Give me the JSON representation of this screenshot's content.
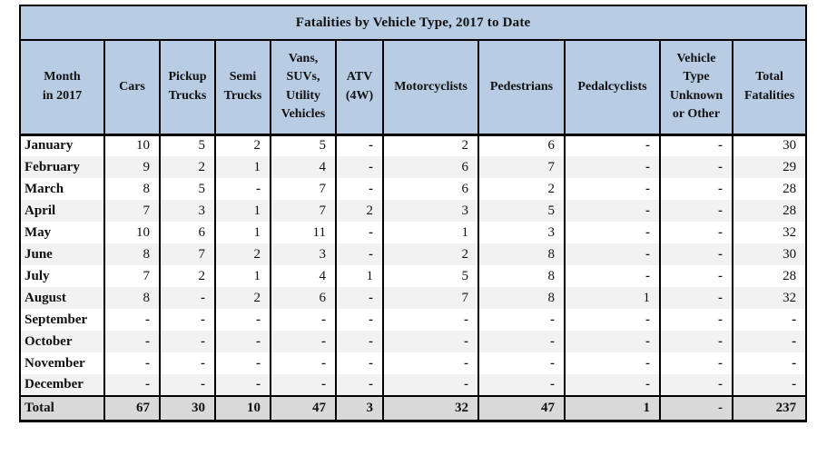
{
  "table": {
    "title": "Fatalities by Vehicle Type, 2017 to Date",
    "columns": [
      "Month\nin 2017",
      "Cars",
      "Pickup\nTrucks",
      "Semi\nTrucks",
      "Vans,\nSUVs,\nUtility\nVehicles",
      "ATV\n(4W)",
      "Motorcyclists",
      "Pedestrians",
      "Pedalcyclists",
      "Vehicle\nType\nUnknown\nor Other",
      "Total\nFatalities"
    ],
    "rows": [
      {
        "month": "January",
        "values": [
          "10",
          "5",
          "2",
          "5",
          "-",
          "2",
          "6",
          "-",
          "-",
          "30"
        ]
      },
      {
        "month": "February",
        "values": [
          "9",
          "2",
          "1",
          "4",
          "-",
          "6",
          "7",
          "-",
          "-",
          "29"
        ]
      },
      {
        "month": "March",
        "values": [
          "8",
          "5",
          "-",
          "7",
          "-",
          "6",
          "2",
          "-",
          "-",
          "28"
        ]
      },
      {
        "month": "April",
        "values": [
          "7",
          "3",
          "1",
          "7",
          "2",
          "3",
          "5",
          "-",
          "-",
          "28"
        ]
      },
      {
        "month": "May",
        "values": [
          "10",
          "6",
          "1",
          "11",
          "-",
          "1",
          "3",
          "-",
          "-",
          "32"
        ]
      },
      {
        "month": "June",
        "values": [
          "8",
          "7",
          "2",
          "3",
          "-",
          "2",
          "8",
          "-",
          "-",
          "30"
        ]
      },
      {
        "month": "July",
        "values": [
          "7",
          "2",
          "1",
          "4",
          "1",
          "5",
          "8",
          "-",
          "-",
          "28"
        ]
      },
      {
        "month": "August",
        "values": [
          "8",
          "-",
          "2",
          "6",
          "-",
          "7",
          "8",
          "1",
          "-",
          "32"
        ]
      },
      {
        "month": "September",
        "values": [
          "-",
          "-",
          "-",
          "-",
          "-",
          "-",
          "-",
          "-",
          "-",
          "-"
        ]
      },
      {
        "month": "October",
        "values": [
          "-",
          "-",
          "-",
          "-",
          "-",
          "-",
          "-",
          "-",
          "-",
          "-"
        ]
      },
      {
        "month": "November",
        "values": [
          "-",
          "-",
          "-",
          "-",
          "-",
          "-",
          "-",
          "-",
          "-",
          "-"
        ]
      },
      {
        "month": "December",
        "values": [
          "-",
          "-",
          "-",
          "-",
          "-",
          "-",
          "-",
          "-",
          "-",
          "-"
        ]
      }
    ],
    "total_row": {
      "label": "Total",
      "values": [
        "67",
        "30",
        "10",
        "47",
        "3",
        "32",
        "47",
        "1",
        "-",
        "237"
      ]
    }
  },
  "colors": {
    "header_bg": "#b8cce4",
    "row_alt_bg": "#f2f2f2",
    "total_bg": "#d9d9d9",
    "border": "#000000"
  }
}
